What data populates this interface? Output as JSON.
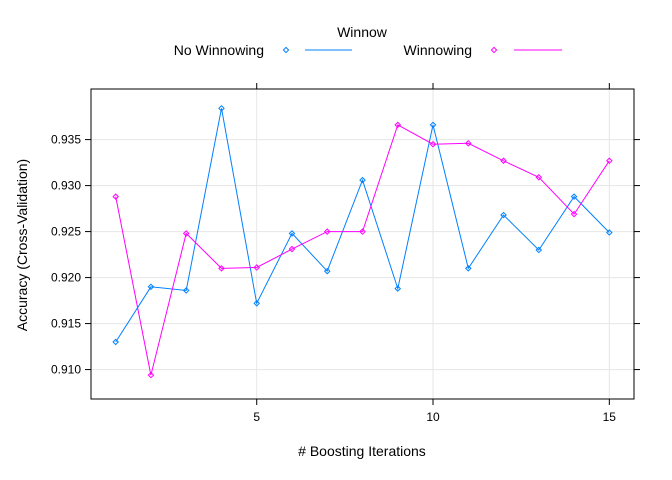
{
  "chart_data": {
    "type": "line",
    "title": "",
    "xlabel": "# Boosting Iterations",
    "ylabel": "Accuracy (Cross-Validation)",
    "xlim": [
      0.3,
      15.7
    ],
    "ylim": [
      0.9068,
      0.9405
    ],
    "x_ticks": [
      5,
      10,
      15
    ],
    "y_ticks": [
      0.91,
      0.915,
      0.92,
      0.925,
      0.93,
      0.935
    ],
    "y_tick_labels": [
      "0.910",
      "0.915",
      "0.920",
      "0.925",
      "0.930",
      "0.935"
    ],
    "grid": true,
    "legend": {
      "title": "Winnow",
      "placement": "top"
    },
    "x": [
      1,
      2,
      3,
      4,
      5,
      6,
      7,
      8,
      9,
      10,
      11,
      12,
      13,
      14,
      15
    ],
    "series": [
      {
        "name": "No Winnowing",
        "color": "#0080ff",
        "values": [
          0.913,
          0.919,
          0.9186,
          0.9384,
          0.9172,
          0.9248,
          0.9207,
          0.9306,
          0.9188,
          0.9366,
          0.921,
          0.9268,
          0.923,
          0.9288,
          0.9249
        ]
      },
      {
        "name": "Winnowing",
        "color": "#ff00ff",
        "values": [
          0.9288,
          0.9094,
          0.9248,
          0.921,
          0.9211,
          0.9231,
          0.925,
          0.925,
          0.9366,
          0.9345,
          0.9346,
          0.9327,
          0.9309,
          0.9269,
          0.9327
        ]
      }
    ]
  }
}
